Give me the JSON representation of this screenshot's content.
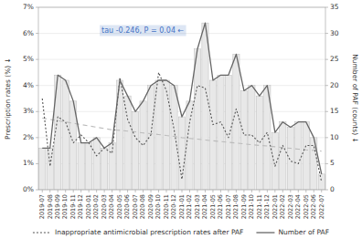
{
  "chart_data": {
    "type": "bar",
    "categories": [
      "2019-07",
      "2019-08",
      "2019-09",
      "2019-10",
      "2019-11",
      "2019-12",
      "2020-01",
      "2020-02",
      "2020-03",
      "2020-04",
      "2020-05",
      "2020-06",
      "2020-07",
      "2020-08",
      "2020-09",
      "2020-10",
      "2020-11",
      "2020-12",
      "2021-01",
      "2021-02",
      "2021-03",
      "2021-04",
      "2021-05",
      "2021-06",
      "2021-07",
      "2021-08",
      "2021-09",
      "2021-10",
      "2021-11",
      "2021-12",
      "2022-01",
      "2022-02",
      "2022-03",
      "2022-04",
      "2022-05",
      "2022-06",
      "2022-07"
    ],
    "series": [
      {
        "type": "bar",
        "axis": "y2",
        "color": "#e8e8e8",
        "values": [
          8,
          8,
          22,
          21,
          17,
          9,
          9,
          10,
          8,
          9,
          21,
          18,
          15,
          17,
          20,
          21,
          21,
          20,
          14,
          17,
          27,
          32,
          21,
          22,
          22,
          26,
          19,
          20,
          18,
          20,
          11,
          13,
          12,
          13,
          13,
          10,
          3
        ]
      },
      {
        "type": "line",
        "color": "#bbbbbb",
        "line_style": "dashed",
        "values": [
          2.75,
          2.7,
          2.65,
          2.6,
          2.55,
          2.5,
          2.45,
          2.4,
          2.35,
          2.3,
          2.28,
          2.25,
          2.22,
          2.18,
          2.15,
          2.12,
          2.08,
          2.05,
          2.0,
          1.97,
          1.94,
          1.91,
          1.88,
          1.85,
          1.82,
          1.79,
          1.76,
          1.73,
          1.7,
          1.68,
          1.65,
          1.62,
          1.59,
          1.56,
          1.53,
          1.51,
          1.48
        ]
      },
      {
        "type": "line",
        "name": "Inappropriate antimicrobial prescription rates after PAF",
        "color": "#555555",
        "line_style": "dotted",
        "values": [
          3.5,
          0.9,
          2.8,
          2.6,
          1.8,
          2.1,
          1.8,
          1.3,
          1.6,
          1.4,
          4.3,
          2.7,
          2.0,
          1.7,
          2.1,
          4.5,
          3.8,
          2.3,
          0.4,
          2.6,
          4.0,
          3.9,
          2.5,
          2.6,
          2.0,
          3.1,
          2.1,
          2.1,
          1.8,
          2.2,
          0.9,
          1.7,
          1.1,
          1.0,
          1.7,
          1.7,
          0.3
        ]
      },
      {
        "type": "line",
        "name": "Number of PAF",
        "axis": "y2",
        "color": "#666666",
        "line_style": "solid",
        "values": [
          8,
          8,
          22,
          21,
          17,
          9,
          9,
          10,
          8,
          9,
          21,
          18,
          15,
          17,
          20,
          21,
          21,
          20,
          14,
          17,
          27,
          32,
          21,
          22,
          22,
          26,
          19,
          20,
          18,
          20,
          11,
          13,
          12,
          13,
          13,
          10,
          3
        ]
      }
    ],
    "ylabel": "Prescription rates (%) ↓",
    "y2label": "Number of PAF (counts) ↓",
    "ylim": [
      0,
      7
    ],
    "yticks": [
      {
        "value": 0,
        "label": "0%"
      },
      {
        "value": 1,
        "label": "1%"
      },
      {
        "value": 2,
        "label": "2%"
      },
      {
        "value": 3,
        "label": "3%"
      },
      {
        "value": 4,
        "label": "4%"
      },
      {
        "value": 5,
        "label": "5%"
      },
      {
        "value": 6,
        "label": "6%"
      },
      {
        "value": 7,
        "label": "7%"
      }
    ],
    "y2lim": [
      0,
      35
    ],
    "y2ticks": [
      0,
      5,
      10,
      15,
      20,
      25,
      30,
      35
    ],
    "annotations": [
      {
        "text": "tau -0.246, P = 0.04 ←",
        "color": "#4472c4"
      }
    ],
    "grid": true,
    "legend": "bottom"
  }
}
